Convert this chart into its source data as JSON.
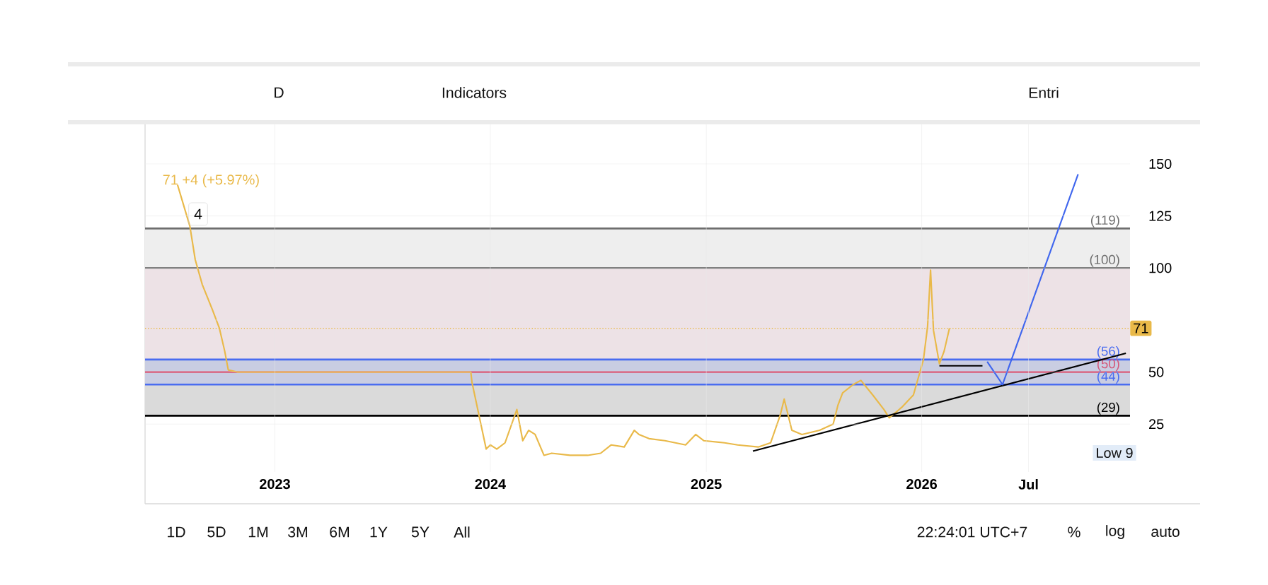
{
  "chart_data": {
    "type": "line",
    "series": [
      {
        "color": "#e9b949",
        "x": [
          "2022-07-20",
          "2022-08-10",
          "2022-08-19",
          "2022-08-31",
          "2022-09-17",
          "2022-09-29",
          "2022-10-08",
          "2022-10-14",
          "2022-10-29",
          "2023-11-29",
          "2023-12-01",
          "2023-12-25",
          "2024-01-01",
          "2024-01-12",
          "2024-01-26",
          "2024-02-15",
          "2024-02-25",
          "2024-03-06",
          "2024-03-17",
          "2024-04-01",
          "2024-04-14",
          "2024-05-15",
          "2024-06-14",
          "2024-07-06",
          "2024-07-24",
          "2024-08-15",
          "2024-09-01",
          "2024-09-09",
          "2024-09-26",
          "2024-10-23",
          "2024-11-27",
          "2024-12-14",
          "2024-12-28",
          "2025-02-01",
          "2025-02-23",
          "2025-03-30",
          "2025-04-20",
          "2025-05-06",
          "2025-05-13",
          "2025-05-26",
          "2025-06-12",
          "2025-07-12",
          "2025-08-04",
          "2025-08-12",
          "2025-08-20",
          "2025-09-07",
          "2025-09-20",
          "2025-10-10",
          "2025-10-29",
          "2025-11-07",
          "2025-11-28",
          "2025-12-18",
          "2025-12-27",
          "2026-01-04",
          "2026-01-11",
          "2026-01-16",
          "2026-01-21",
          "2026-01-31",
          "2026-02-08",
          "2026-02-17"
        ],
        "values": [
          140,
          120,
          104,
          92,
          80,
          71,
          60,
          51,
          50,
          50,
          45,
          13,
          15,
          13,
          16,
          32,
          17,
          22,
          20,
          10,
          11,
          10,
          10,
          11,
          15,
          14,
          22,
          20,
          18,
          17,
          15,
          20,
          17,
          16,
          15,
          14,
          16,
          29,
          37,
          22,
          20,
          22,
          25,
          34,
          40,
          44,
          46,
          39,
          32,
          28,
          33,
          39,
          48,
          56,
          72,
          99,
          70,
          54,
          60,
          71
        ]
      },
      {
        "color": "#000000",
        "x": [
          "2025-03-21",
          "2026-12-13"
        ],
        "values": [
          12,
          59
        ]
      },
      {
        "color": "#000000",
        "x": [
          "2026-01-31",
          "2026-04-14"
        ],
        "values": [
          53,
          53
        ]
      },
      {
        "color": "#3f66ee",
        "x": [
          "2026-04-22",
          "2026-05-18",
          "2026-09-23"
        ],
        "values": [
          55,
          44,
          145
        ]
      }
    ],
    "xlim": [
      "2022-05-26",
      "2026-12-20"
    ],
    "ylim": [
      2,
      169
    ],
    "xticks": [
      {
        "value": "2023-01-01",
        "label": "2023"
      },
      {
        "value": "2024-01-01",
        "label": "2024"
      },
      {
        "value": "2025-01-01",
        "label": "2025"
      },
      {
        "value": "2026-01-01",
        "label": "2026"
      },
      {
        "value": "2026-07-01",
        "label": "Jul"
      }
    ],
    "yticks": [
      25,
      50,
      {
        "value": 75,
        "label": null
      },
      100,
      125,
      150
    ],
    "grid": true,
    "bands": [
      {
        "axis": "y",
        "from": 100,
        "to": 119,
        "color": "#eeeeee"
      },
      {
        "axis": "y",
        "from": 56,
        "to": 100,
        "color": "#ede2e6"
      },
      {
        "axis": "y",
        "from": 44,
        "to": 56,
        "color": "#c9cde2"
      },
      {
        "axis": "y",
        "from": 29,
        "to": 44,
        "color": "#dadada"
      }
    ],
    "ref_lines": [
      {
        "axis": "y",
        "value": 119,
        "label": "(119)",
        "color": "#6e6e6e"
      },
      {
        "axis": "y",
        "value": 100,
        "label": "(100)",
        "color": "#6e6e6e"
      },
      {
        "axis": "y",
        "value": 56,
        "label": "(56)",
        "color": "#4a6cf0"
      },
      {
        "axis": "y",
        "value": 50,
        "label": "(50)",
        "color": "#d4587a"
      },
      {
        "axis": "y",
        "value": 44,
        "label": "(44)",
        "color": "#4a6cf0"
      },
      {
        "axis": "y",
        "value": 29,
        "label": "(29)",
        "color": "#000000"
      },
      {
        "axis": "y",
        "value": 71,
        "label": "71",
        "color": "#e9b949",
        "line_style": "dotted"
      }
    ],
    "annotations": [
      "71  +4 (+5.97%)",
      "4",
      "Low 9",
      "D",
      "Indicators",
      "Entri",
      "1D",
      "5D",
      "1M",
      "3M",
      "6M",
      "1Y",
      "5Y",
      "All",
      "22:24:01 UTC+7",
      "%",
      "log",
      "auto"
    ]
  }
}
